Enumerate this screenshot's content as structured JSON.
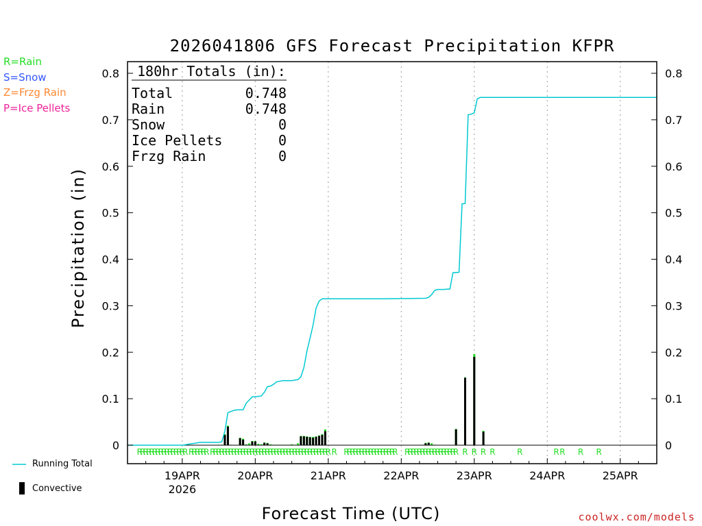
{
  "colors": {
    "rain": "#22dd22",
    "snow": "#3355ff",
    "frzg_rain": "#ff8833",
    "ice_pellets": "#ee2299",
    "running_total": "#00c8d2",
    "convective": "#000000",
    "grid": "#999999",
    "watermark": "#cc2222"
  },
  "ptype_legend": [
    {
      "label": "R=Rain",
      "color_key": "rain"
    },
    {
      "label": "S=Snow",
      "color_key": "snow"
    },
    {
      "label": "Z=Frzg Rain",
      "color_key": "frzg_rain"
    },
    {
      "label": "P=Ice Pellets",
      "color_key": "ice_pellets"
    }
  ],
  "key": {
    "running_total_label": "Running Total",
    "convective_label": "Convective"
  },
  "totals": {
    "header": "180hr Totals (in):",
    "rows": [
      {
        "label": "Total",
        "value": "0.748"
      },
      {
        "label": "Rain",
        "value": "0.748"
      },
      {
        "label": "Snow",
        "value": "0"
      },
      {
        "label": "Ice Pellets",
        "value": "0"
      },
      {
        "label": "Frzg Rain",
        "value": "0"
      }
    ]
  },
  "watermark": "coolwx.com/models",
  "chart_data": {
    "type": "bar",
    "title": "2026041806 GFS Forecast Precipitation KFPR",
    "xlabel": "Forecast Time (UTC)",
    "ylabel": "Precipitation (in)",
    "ylim": [
      0,
      0.8
    ],
    "yticks": [
      "0",
      "0.1",
      "0.2",
      "0.3",
      "0.4",
      "0.5",
      "0.6",
      "0.7",
      "0.8"
    ],
    "xlim_hours": [
      6,
      180
    ],
    "xticks": [
      {
        "hour": 24,
        "label": "19APR",
        "sublabel": "2026"
      },
      {
        "hour": 48,
        "label": "20APR",
        "sublabel": ""
      },
      {
        "hour": 72,
        "label": "21APR",
        "sublabel": ""
      },
      {
        "hour": 96,
        "label": "22APR",
        "sublabel": ""
      },
      {
        "hour": 120,
        "label": "23APR",
        "sublabel": ""
      },
      {
        "hour": 144,
        "label": "24APR",
        "sublabel": ""
      },
      {
        "hour": 168,
        "label": "25APR",
        "sublabel": ""
      }
    ],
    "grid": "vertical dotted at day boundaries",
    "running_total": {
      "name": "Running Total",
      "x_hours": [
        6,
        20,
        24,
        30,
        36,
        37,
        38,
        39,
        41,
        42,
        44,
        45,
        47,
        48,
        50,
        51,
        52,
        53,
        54,
        55,
        57,
        60,
        62,
        63,
        64,
        65,
        66,
        67,
        68,
        69,
        70,
        71,
        72,
        90,
        104,
        105,
        106,
        107,
        108,
        110,
        112,
        113,
        115,
        116,
        117,
        118,
        119,
        120,
        121,
        122,
        123,
        124,
        125,
        126,
        127,
        180
      ],
      "values": [
        0.0,
        0.0,
        0.0,
        0.006,
        0.006,
        0.007,
        0.03,
        0.07,
        0.075,
        0.076,
        0.076,
        0.09,
        0.104,
        0.104,
        0.106,
        0.114,
        0.126,
        0.127,
        0.131,
        0.136,
        0.139,
        0.139,
        0.141,
        0.147,
        0.167,
        0.203,
        0.23,
        0.258,
        0.295,
        0.31,
        0.315,
        0.315,
        0.315,
        0.315,
        0.316,
        0.318,
        0.324,
        0.333,
        0.335,
        0.335,
        0.336,
        0.371,
        0.372,
        0.519,
        0.52,
        0.711,
        0.712,
        0.715,
        0.745,
        0.748,
        0.748,
        0.748,
        0.748,
        0.748,
        0.748,
        0.748
      ]
    },
    "period_precip": {
      "name": "Rain",
      "x_hours": [
        36,
        37,
        38,
        39,
        40,
        43,
        44,
        45,
        46,
        47,
        48,
        49,
        50,
        51,
        52,
        53,
        54,
        55,
        56,
        57,
        58,
        59,
        60,
        61,
        62,
        63,
        64,
        65,
        66,
        67,
        68,
        69,
        70,
        71,
        103,
        104,
        105,
        106,
        107,
        114,
        117,
        120,
        123
      ],
      "values": [
        0.001,
        0.001,
        0.024,
        0.042,
        0.001,
        0.016,
        0.014,
        0.002,
        0.004,
        0.009,
        0.009,
        0.003,
        0.002,
        0.006,
        0.005,
        0.002,
        0.001,
        0.001,
        0.001,
        0.001,
        0.001,
        0.001,
        0.002,
        0.001,
        0.004,
        0.02,
        0.02,
        0.019,
        0.018,
        0.018,
        0.019,
        0.021,
        0.024,
        0.034,
        0.001,
        0.005,
        0.006,
        0.004,
        0.001,
        0.035,
        0.146,
        0.196,
        0.031
      ]
    },
    "convective_precip": {
      "name": "Convective",
      "x_hours": [
        38,
        39,
        43,
        44,
        47,
        48,
        51,
        52,
        63,
        64,
        65,
        66,
        67,
        68,
        69,
        70,
        71,
        104,
        105,
        114,
        117,
        120,
        123
      ],
      "values": [
        0.022,
        0.04,
        0.015,
        0.012,
        0.008,
        0.008,
        0.005,
        0.004,
        0.019,
        0.019,
        0.018,
        0.017,
        0.016,
        0.018,
        0.02,
        0.022,
        0.03,
        0.004,
        0.005,
        0.034,
        0.145,
        0.19,
        0.029
      ]
    },
    "precip_type_labels": {
      "symbol": "R",
      "x_hours": [
        10,
        11,
        12,
        13,
        14,
        15,
        16,
        17,
        18,
        19,
        20,
        21,
        22,
        23,
        24,
        25,
        27,
        28,
        29,
        30,
        31,
        32,
        34,
        35,
        36,
        37,
        38,
        39,
        40,
        41,
        42,
        43,
        44,
        45,
        46,
        47,
        48,
        49,
        50,
        51,
        52,
        53,
        54,
        55,
        56,
        57,
        58,
        59,
        60,
        61,
        62,
        63,
        64,
        65,
        66,
        67,
        68,
        69,
        70,
        71,
        72,
        74,
        78,
        79,
        80,
        81,
        82,
        83,
        84,
        85,
        86,
        87,
        88,
        89,
        90,
        91,
        92,
        93,
        94,
        98,
        99,
        100,
        101,
        102,
        103,
        104,
        105,
        106,
        107,
        108,
        109,
        110,
        111,
        112,
        113,
        114,
        117,
        120,
        123,
        126,
        135,
        147,
        149,
        155,
        161
      ]
    }
  }
}
